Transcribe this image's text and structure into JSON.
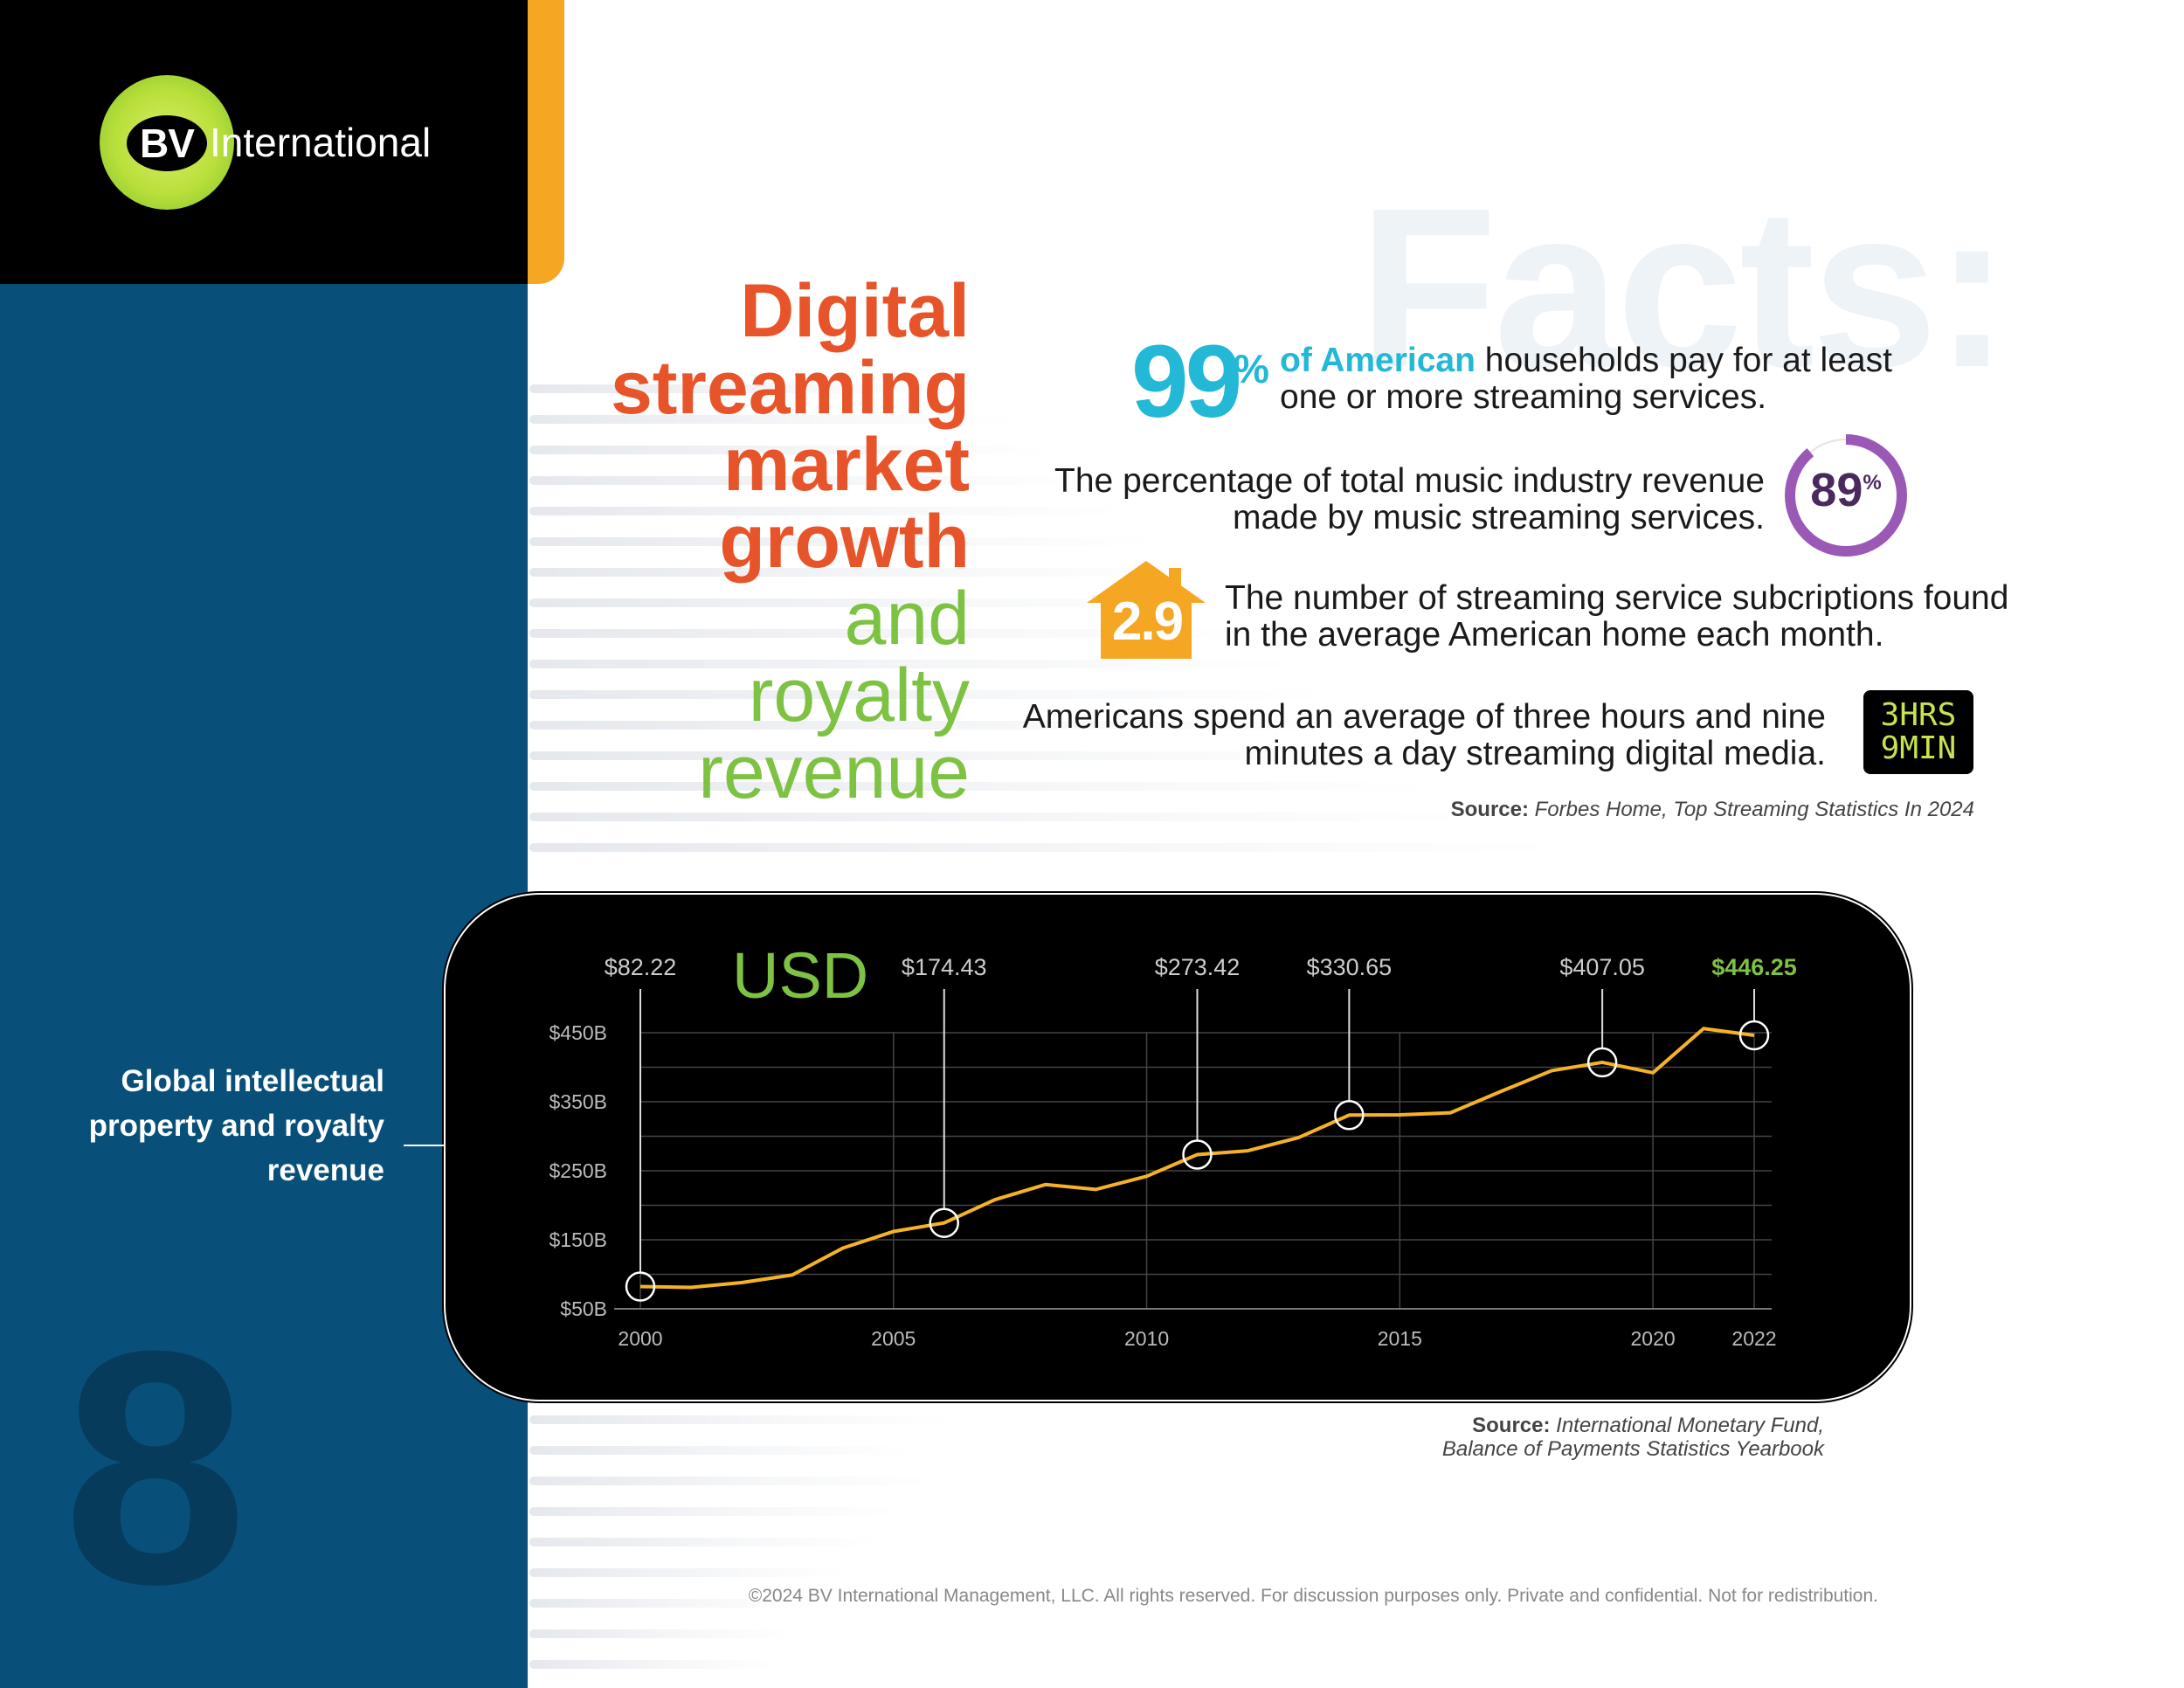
{
  "logo": {
    "initials": "BV",
    "name": "International"
  },
  "page_number": "8",
  "headline": {
    "lines_orange": [
      "Digital",
      "streaming",
      "market",
      "growth"
    ],
    "lines_green": [
      "and",
      "royalty",
      "revenue"
    ]
  },
  "facts": {
    "watermark": "Facts:",
    "fact1": {
      "value": "99",
      "unit": "%",
      "highlight": "of American",
      "text": " households pay for at least one or more streaming services."
    },
    "fact2": {
      "text": "The percentage of total music industry revenue made by music streaming services.",
      "value": "89",
      "unit": "%",
      "ring_fraction": 0.89
    },
    "fact3": {
      "value": "2.9",
      "text": "The number of streaming service subcriptions found in the average American home each month."
    },
    "fact4": {
      "text": "Americans spend an average of three hours and nine minutes a day streaming digital media.",
      "clock_line1": "3HRS",
      "clock_line2": "9MIN"
    },
    "source": {
      "label": "Source:",
      "text": " Forbes Home, Top Streaming Statistics In 2024"
    }
  },
  "chart_side_label": "Global intellectual property and royalty revenue",
  "colors": {
    "orange": "#e8542a",
    "green": "#7dc242",
    "cyan": "#22b8d6",
    "purple": "#9b59b6",
    "line": "#f5b324",
    "navy": "#08507a"
  },
  "chart_data": {
    "type": "line",
    "unit_label": "USD",
    "x": [
      2000,
      2001,
      2002,
      2003,
      2004,
      2005,
      2006,
      2007,
      2008,
      2009,
      2010,
      2011,
      2012,
      2013,
      2014,
      2015,
      2016,
      2017,
      2018,
      2019,
      2020,
      2021,
      2022
    ],
    "values": [
      82.22,
      81,
      88,
      99,
      138,
      162,
      174.43,
      208,
      230,
      223,
      242,
      273.42,
      279,
      298,
      330.65,
      331,
      334,
      365,
      395,
      407.05,
      392,
      456,
      446.25
    ],
    "y_ticks": [
      50,
      150,
      250,
      350,
      450
    ],
    "y_tick_labels": [
      "$50B",
      "$150B",
      "$250B",
      "$350B",
      "$450B"
    ],
    "x_ticks": [
      2000,
      2005,
      2010,
      2015,
      2020,
      2022
    ],
    "x_tick_labels": [
      "2000",
      "2005",
      "2010",
      "2015",
      "2020",
      "2022"
    ],
    "ylim": [
      50,
      460
    ],
    "xlim": [
      2000,
      2022
    ],
    "callouts": [
      {
        "x": 2000,
        "value": 82.22,
        "label": "$82.22"
      },
      {
        "x": 2006,
        "value": 174.43,
        "label": "$174.43"
      },
      {
        "x": 2011,
        "value": 273.42,
        "label": "$273.42"
      },
      {
        "x": 2014,
        "value": 330.65,
        "label": "$330.65"
      },
      {
        "x": 2019,
        "value": 407.05,
        "label": "$407.05"
      },
      {
        "x": 2022,
        "value": 446.25,
        "label": "$446.25",
        "highlight": true
      }
    ],
    "grid": true
  },
  "chart_source": {
    "label": "Source:",
    "line1": " International Monetary Fund,",
    "line2": "Balance of Payments Statistics Yearbook"
  },
  "footer": "©2024 BV International Management, LLC. All rights reserved. For discussion purposes only. Private and confidential. Not for redistribution."
}
